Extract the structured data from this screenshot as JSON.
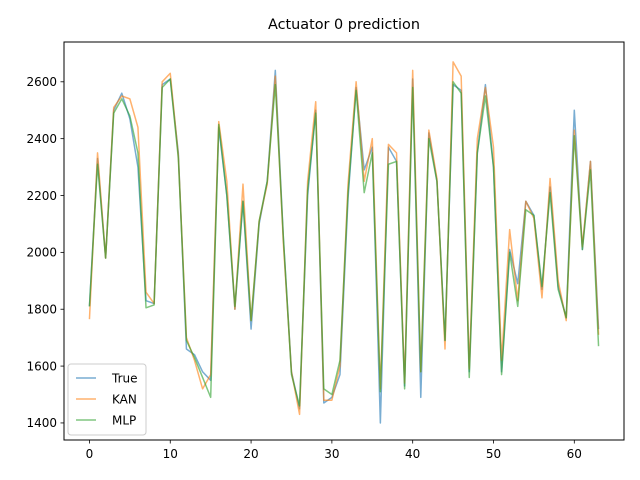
{
  "chart_data": {
    "type": "line",
    "title": "Actuator 0 prediction",
    "xlabel": "",
    "ylabel": "",
    "xlim": [
      -3.15,
      66.15
    ],
    "ylim": [
      1340,
      2740
    ],
    "xticks": [
      0,
      10,
      20,
      30,
      40,
      50,
      60
    ],
    "yticks": [
      1400,
      1600,
      1800,
      2000,
      2200,
      2400,
      2600
    ],
    "grid": false,
    "legend_position": "lower-left",
    "x": [
      0,
      1,
      2,
      3,
      4,
      5,
      6,
      7,
      8,
      9,
      10,
      11,
      12,
      13,
      14,
      15,
      16,
      17,
      18,
      19,
      20,
      21,
      22,
      23,
      24,
      25,
      26,
      27,
      28,
      29,
      30,
      31,
      32,
      33,
      34,
      35,
      36,
      37,
      38,
      39,
      40,
      41,
      42,
      43,
      44,
      45,
      46,
      47,
      48,
      49,
      50,
      51,
      52,
      53,
      54,
      55,
      56,
      57,
      58,
      59,
      60,
      61,
      62,
      63
    ],
    "series": [
      {
        "name": "True",
        "color": "#1f77b4",
        "values": [
          1810,
          2330,
          1980,
          2500,
          2560,
          2470,
          2300,
          1830,
          1820,
          2590,
          2610,
          2350,
          1660,
          1640,
          1580,
          1550,
          2440,
          2200,
          1800,
          2180,
          1730,
          2100,
          2250,
          2640,
          2050,
          1580,
          1450,
          2200,
          2500,
          1470,
          1490,
          1570,
          2190,
          2580,
          2290,
          2370,
          1400,
          2370,
          2320,
          1530,
          2610,
          1490,
          2420,
          2250,
          1690,
          2590,
          2570,
          1580,
          2350,
          2590,
          2300,
          1580,
          2010,
          1890,
          2180,
          2130,
          1870,
          2230,
          1880,
          1770,
          2500,
          2010,
          2320,
          1730
        ]
      },
      {
        "name": "KAN",
        "color": "#ff7f0e",
        "values": [
          1765,
          2350,
          1980,
          2510,
          2550,
          2540,
          2440,
          1860,
          1820,
          2600,
          2630,
          2340,
          1700,
          1620,
          1520,
          1570,
          2460,
          2250,
          1800,
          2240,
          1760,
          2110,
          2240,
          2620,
          2030,
          1580,
          1430,
          2250,
          2530,
          1480,
          1480,
          1600,
          2240,
          2600,
          2250,
          2400,
          1520,
          2380,
          2350,
          1540,
          2640,
          1580,
          2430,
          2260,
          1660,
          2670,
          2620,
          1590,
          2400,
          2580,
          2370,
          1620,
          2080,
          1830,
          2180,
          2120,
          1840,
          2260,
          1900,
          1760,
          2430,
          2020,
          2320,
          1710
        ]
      },
      {
        "name": "MLP",
        "color": "#2ca02c",
        "values": [
          1810,
          2310,
          1980,
          2490,
          2540,
          2480,
          2350,
          1805,
          1815,
          2580,
          2610,
          2330,
          1690,
          1630,
          1560,
          1490,
          2450,
          2200,
          1810,
          2180,
          1760,
          2110,
          2250,
          2590,
          2050,
          1570,
          1460,
          2220,
          2490,
          1520,
          1500,
          1620,
          2210,
          2570,
          2210,
          2350,
          1510,
          2310,
          2320,
          1520,
          2580,
          1580,
          2400,
          2250,
          1690,
          2600,
          2560,
          1560,
          2350,
          2550,
          2300,
          1570,
          2000,
          1810,
          2150,
          2130,
          1880,
          2210,
          1870,
          1770,
          2410,
          2010,
          2290,
          1670
        ]
      }
    ]
  }
}
